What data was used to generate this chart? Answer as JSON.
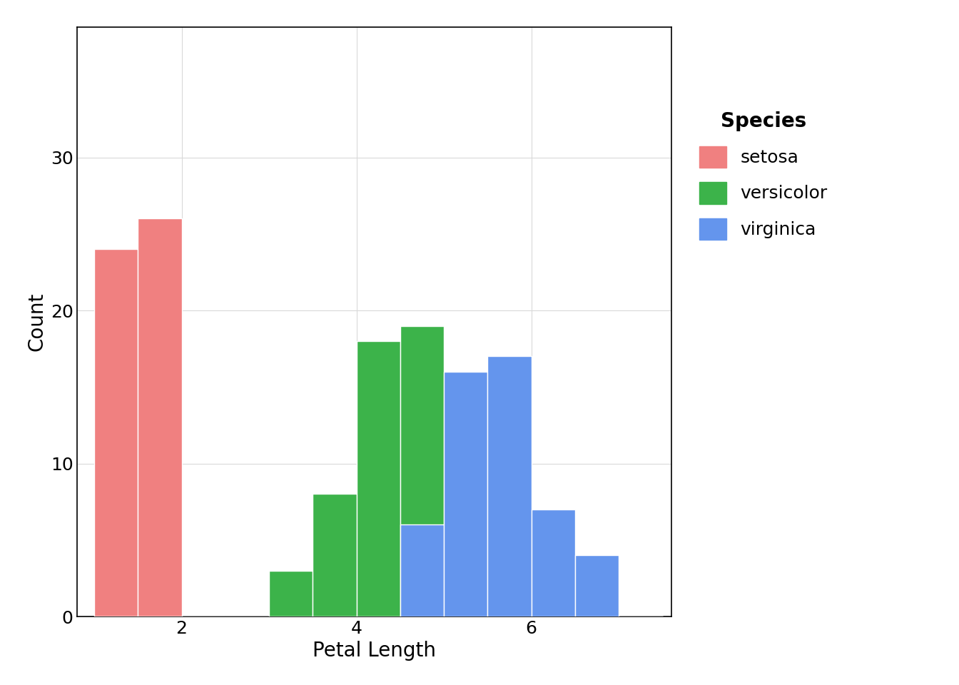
{
  "title": "",
  "xlabel": "Petal Length",
  "ylabel": "Count",
  "legend_title": "Species",
  "species": [
    "setosa",
    "versicolor",
    "virginica"
  ],
  "colors": [
    "#F08080",
    "#3CB34A",
    "#6495ED"
  ],
  "bin_width": 0.5,
  "bin_start": 1.0,
  "bin_end": 7.5,
  "setosa_petal": [
    1.4,
    1.4,
    1.3,
    1.5,
    1.4,
    1.7,
    1.4,
    1.5,
    1.4,
    1.5,
    1.5,
    1.6,
    1.4,
    1.1,
    1.2,
    1.5,
    1.3,
    1.4,
    1.7,
    1.5,
    1.7,
    1.5,
    1.0,
    1.7,
    1.9,
    1.6,
    1.6,
    1.5,
    1.4,
    1.6,
    1.6,
    1.5,
    1.5,
    1.4,
    1.5,
    1.2,
    1.3,
    1.4,
    1.3,
    1.5,
    1.3,
    1.3,
    1.3,
    1.6,
    1.9,
    1.4,
    1.6,
    1.4,
    1.5,
    1.4
  ],
  "versicolor_petal": [
    4.7,
    4.5,
    4.9,
    4.0,
    4.6,
    4.5,
    4.7,
    3.3,
    4.6,
    3.9,
    3.5,
    4.2,
    4.0,
    4.7,
    3.6,
    4.4,
    4.5,
    4.1,
    4.5,
    3.9,
    4.8,
    4.0,
    4.9,
    4.7,
    4.3,
    4.4,
    4.8,
    5.0,
    4.5,
    3.5,
    3.8,
    3.7,
    3.9,
    5.1,
    4.5,
    4.5,
    4.7,
    4.4,
    4.1,
    4.0,
    4.4,
    4.6,
    4.0,
    3.3,
    4.2,
    4.2,
    4.2,
    4.3,
    3.0,
    4.1
  ],
  "virginica_petal": [
    6.0,
    5.1,
    5.9,
    5.6,
    5.8,
    6.6,
    4.5,
    6.3,
    5.8,
    6.1,
    5.1,
    5.3,
    5.5,
    5.0,
    5.1,
    5.3,
    5.5,
    6.7,
    6.9,
    5.0,
    5.7,
    4.9,
    6.7,
    4.9,
    5.7,
    6.0,
    4.8,
    4.9,
    5.6,
    5.8,
    6.1,
    6.4,
    5.6,
    5.1,
    5.6,
    6.1,
    5.6,
    5.5,
    4.8,
    5.4,
    5.6,
    5.1,
    5.9,
    5.7,
    5.2,
    5.0,
    5.2,
    5.4,
    5.1,
    5.0
  ],
  "xlim": [
    0.8,
    7.6
  ],
  "ylim": [
    0,
    38.5
  ],
  "yticks": [
    0,
    10,
    20,
    30
  ],
  "xticks": [
    2,
    4,
    6
  ],
  "background_color": "#FFFFFF",
  "plot_bg_color": "#FFFFFF",
  "grid_color": "#D9D9D9",
  "label_fontsize": 20,
  "tick_fontsize": 18,
  "legend_title_fontsize": 20,
  "legend_fontsize": 18
}
